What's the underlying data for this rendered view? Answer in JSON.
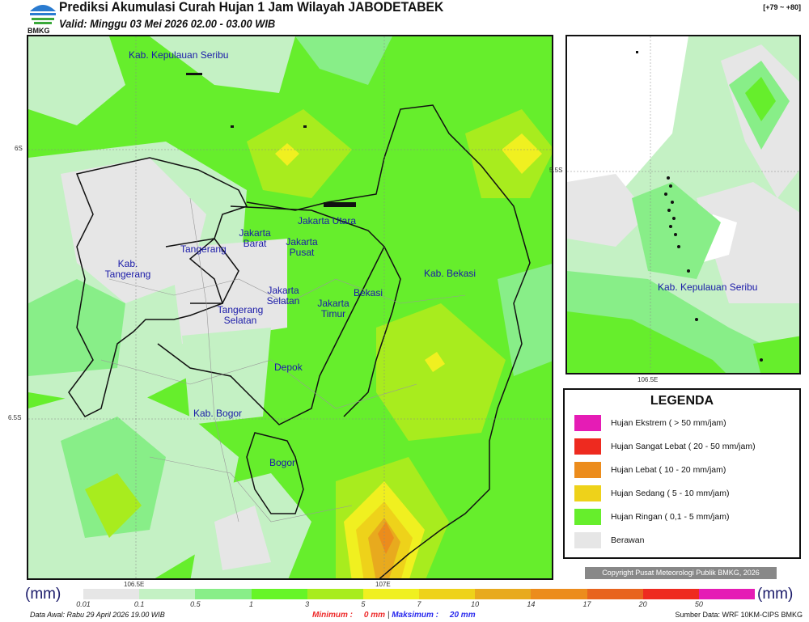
{
  "header": {
    "logo_text": "BMKG",
    "title": "Prediksi Akumulasi Curah Hujan 1 Jam Wilayah JABODETABEK",
    "valid": "Valid: Minggu 03 Mei 2026 02.00 - 03.00 WIB",
    "range": "[+79 ~ +80]"
  },
  "map": {
    "regions": [
      "Kab. Kepulauan Seribu",
      "Jakarta Utara",
      "Jakarta Barat",
      "Jakarta Pusat",
      "Tangerang",
      "Kab. Tangerang",
      "Jakarta Selatan",
      "Jakarta Timur",
      "Tangerang Selatan",
      "Bekasi",
      "Kab. Bekasi",
      "Depok",
      "Kab. Bogor",
      "Bogor"
    ],
    "ticks": {
      "lat1": "6S",
      "lat2": "6.5S",
      "lon1": "106.5E",
      "lon2": "107E"
    }
  },
  "inset": {
    "region": "Kab. Kepulauan Seribu",
    "lat": "5.5S",
    "lon": "106.5E"
  },
  "legend": {
    "title": "LEGENDA",
    "items": [
      {
        "label": "Hujan Ekstrem ( > 50 mm/jam)",
        "color": "#e51cb5"
      },
      {
        "label": "Hujan Sangat Lebat ( 20 - 50 mm/jam)",
        "color": "#ee2a1f"
      },
      {
        "label": "Hujan Lebat ( 10 - 20 mm/jam)",
        "color": "#ec8c1c"
      },
      {
        "label": "Hujan Sedang ( 5 - 10 mm/jam)",
        "color": "#eed21a"
      },
      {
        "label": "Hujan Ringan ( 0,1 - 5 mm/jam)",
        "color": "#66ee2c"
      },
      {
        "label": "Berawan",
        "color": "#e6e6e6"
      }
    ]
  },
  "copyright": "Copyright Pusat Meteorologi Publik BMKG, 2026",
  "colorbar": {
    "unit": "(mm)",
    "colors": [
      "#e6e6e6",
      "#c4f1c4",
      "#88ee88",
      "#66f527",
      "#a8ec1e",
      "#f0f020",
      "#eed21a",
      "#e8aa1e",
      "#ec8c1c",
      "#e8641e",
      "#ee2a1f",
      "#e51cb5"
    ],
    "labels": [
      "0.01",
      "0.1",
      "0.5",
      "1",
      "3",
      "5",
      "7",
      "10",
      "14",
      "17",
      "20",
      "50"
    ]
  },
  "footer": {
    "data_awal": "Data Awal: Rabu 29 April 2026 19.00 WIB",
    "min_label": "Minimum :",
    "min_value": "0 mm",
    "max_label": "Maksimum :",
    "max_value": "20 mm",
    "source": "Sumber Data: WRF 10KM-CIPS BMKG"
  }
}
